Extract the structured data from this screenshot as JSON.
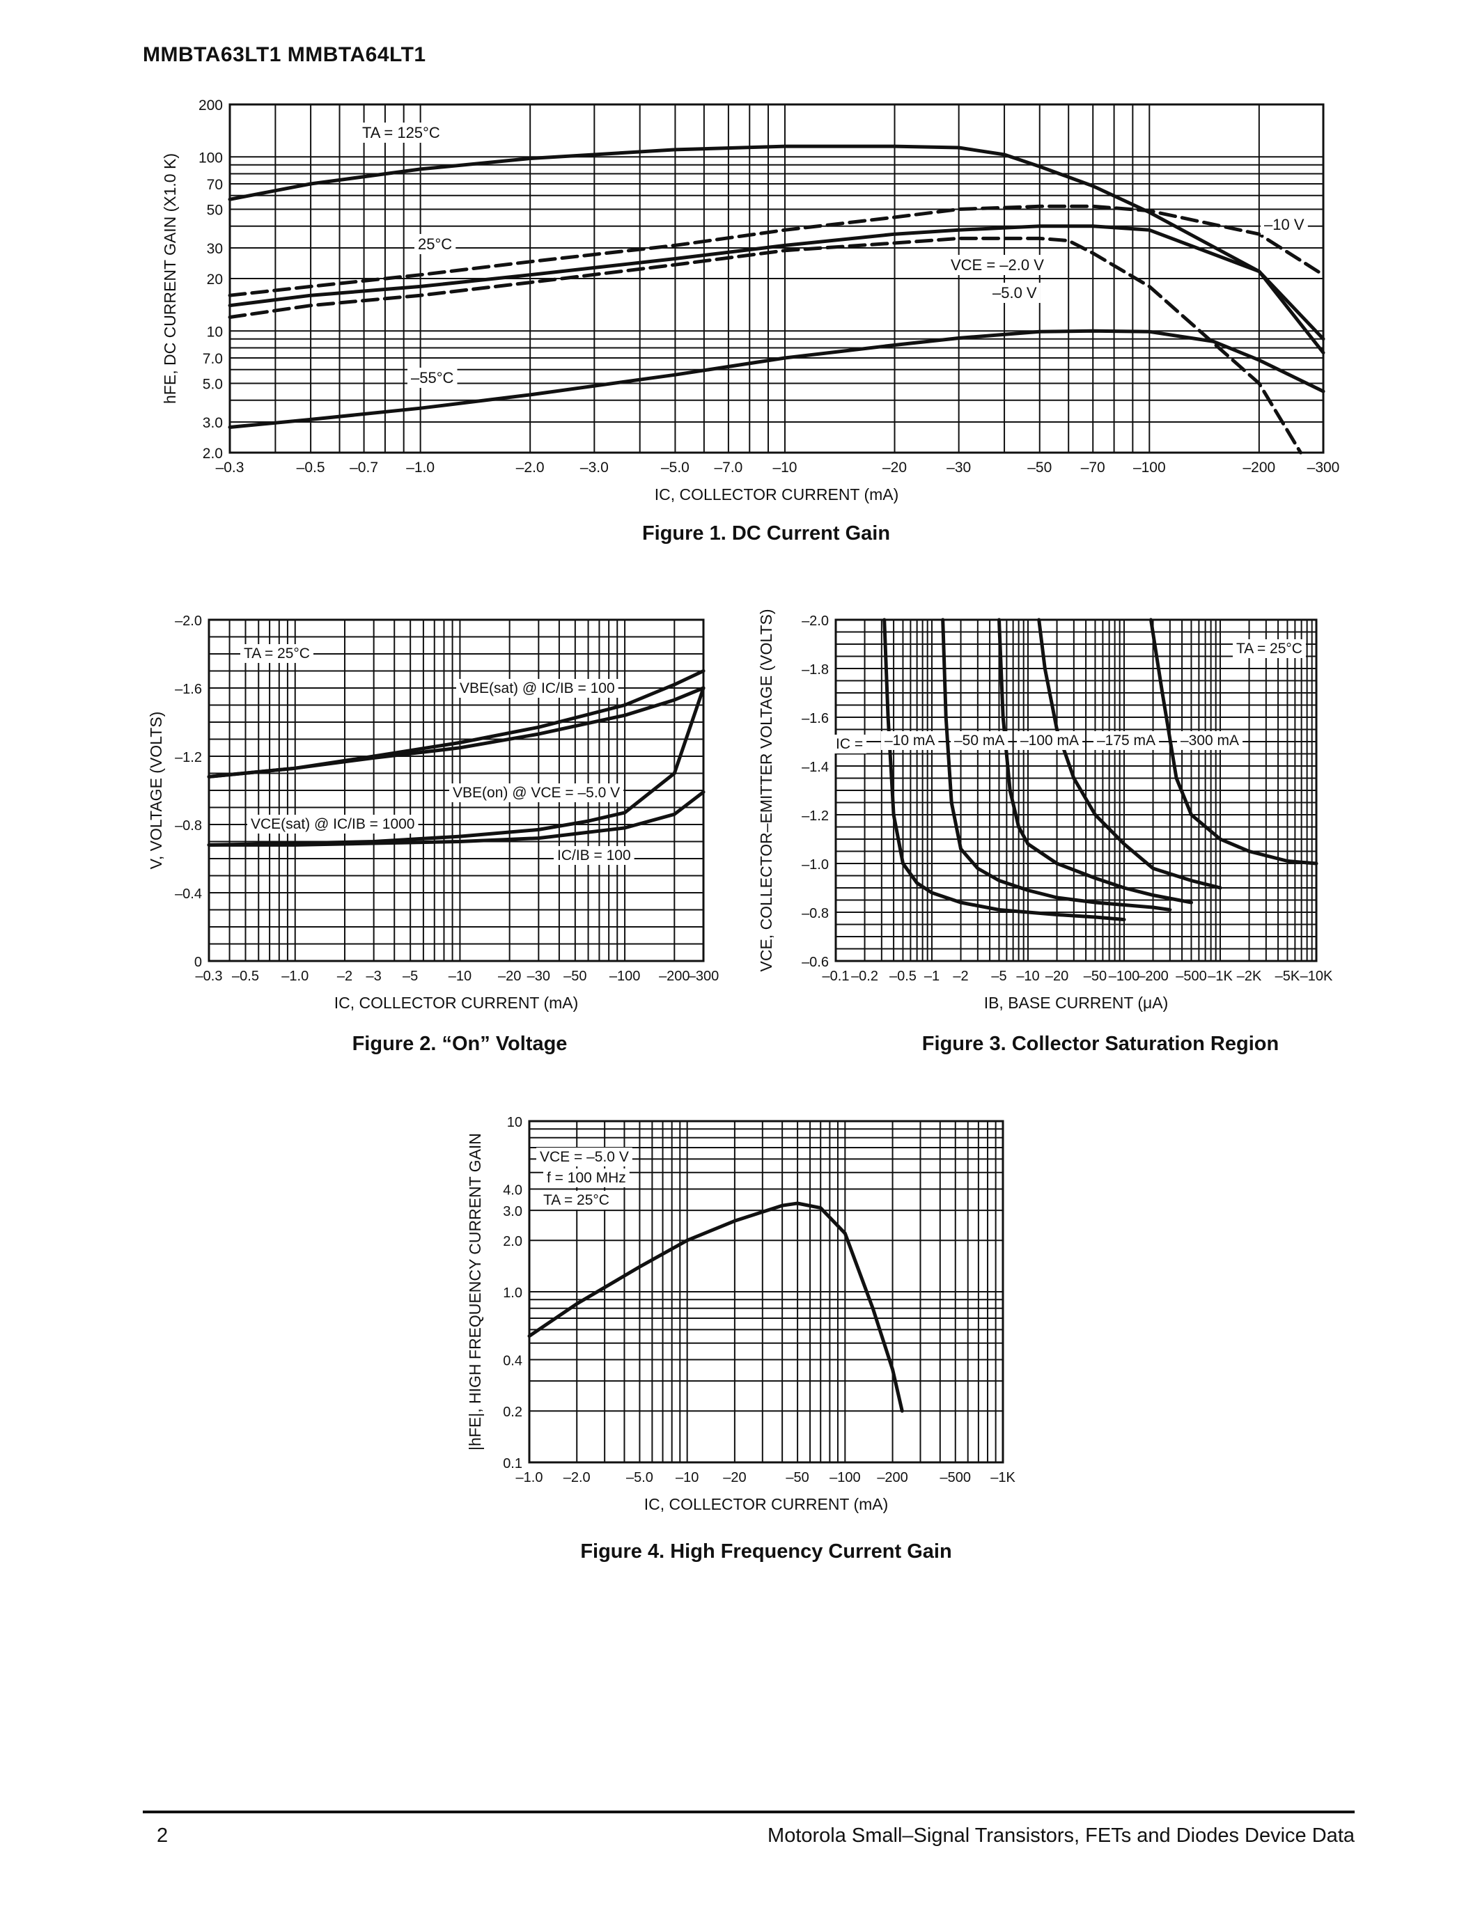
{
  "header": {
    "title": "MMBTA63LT1 MMBTA64LT1"
  },
  "footer": {
    "page_number": "2",
    "source": "Motorola Small–Signal Transistors, FETs and Diodes Device Data"
  },
  "figures": [
    {
      "caption": "Figure 1. DC Current Gain"
    },
    {
      "caption": "Figure 2. “On” Voltage"
    },
    {
      "caption": "Figure 3. Collector Saturation Region"
    },
    {
      "caption": "Figure 4. High Frequency Current Gain"
    }
  ],
  "chart_data": [
    {
      "type": "line",
      "x_scale": "log",
      "y_scale": "log",
      "xlabel": "IC, COLLECTOR CURRENT (mA)",
      "ylabel": "hFE, DC CURRENT GAIN (X1.0 K)",
      "xlim": [
        0.3,
        300
      ],
      "ylim": [
        2,
        200
      ],
      "x_ticks": [
        "–0.3",
        "–0.5",
        "–0.7",
        "–1.0",
        "–2.0",
        "–3.0",
        "–5.0",
        "–7.0",
        "–10",
        "–20",
        "–30",
        "–50",
        "–70",
        "–100",
        "–200",
        "–300"
      ],
      "y_ticks": [
        "200",
        "100",
        "70",
        "50",
        "30",
        "20",
        "10",
        "7.0",
        "5.0",
        "3.0",
        "2.0"
      ],
      "annotations": [
        "TA = 125°C",
        "25°C",
        "–55°C",
        "VCE = –2.0 V",
        "–5.0 V",
        "–10 V"
      ],
      "series": [
        {
          "style": "solid",
          "x": [
            0.3,
            0.5,
            1,
            2,
            5,
            10,
            20,
            30,
            40,
            50,
            70,
            100,
            200,
            300
          ],
          "y": [
            57,
            70,
            85,
            98,
            110,
            115,
            115,
            113,
            103,
            88,
            68,
            48,
            22,
            9
          ]
        },
        {
          "style": "dashed",
          "x": [
            0.3,
            0.5,
            1,
            2,
            5,
            10,
            20,
            30,
            50,
            70,
            100,
            200,
            300
          ],
          "y": [
            16,
            18,
            21,
            25,
            31,
            38,
            45,
            50,
            52,
            52,
            49,
            36,
            21
          ]
        },
        {
          "style": "solid",
          "x": [
            0.3,
            0.5,
            1,
            2,
            5,
            10,
            20,
            30,
            50,
            70,
            100,
            200,
            300
          ],
          "y": [
            14,
            16,
            18,
            21,
            26,
            31,
            36,
            38,
            40,
            40,
            38,
            22,
            7.5
          ]
        },
        {
          "style": "dashed",
          "x": [
            0.3,
            0.5,
            1,
            2,
            5,
            10,
            20,
            30,
            50,
            60,
            70,
            100,
            200,
            260
          ],
          "y": [
            12,
            14,
            16,
            19,
            24,
            29,
            32,
            34,
            34,
            33,
            28,
            18,
            5,
            2
          ]
        },
        {
          "style": "solid",
          "x": [
            0.3,
            0.5,
            1,
            2,
            5,
            10,
            20,
            30,
            50,
            70,
            100,
            150,
            200,
            300
          ],
          "y": [
            2.8,
            3.1,
            3.6,
            4.3,
            5.6,
            7,
            8.3,
            9.1,
            9.9,
            10,
            9.9,
            8.7,
            6.8,
            4.5
          ]
        }
      ]
    },
    {
      "type": "line",
      "x_scale": "log",
      "xlabel": "IC, COLLECTOR CURRENT (mA)",
      "ylabel": "V, VOLTAGE (VOLTS)",
      "xlim": [
        0.3,
        300
      ],
      "ylim": [
        0,
        -2.0
      ],
      "x_ticks": [
        "–0.3",
        "–0.5",
        "–1.0",
        "–2",
        "–3",
        "–5",
        "–10",
        "–20",
        "–30",
        "–50",
        "–100",
        "–200",
        "–300"
      ],
      "y_ticks": [
        "–2.0",
        "–1.6",
        "–1.2",
        "–0.8",
        "–0.4",
        "0"
      ],
      "annotations": [
        "TA = 25°C",
        "VBE(sat) @ IC/IB = 100",
        "VBE(on) @ VCE = –5.0 V",
        "VCE(sat) @ IC/IB = 1000",
        "IC/IB = 100"
      ],
      "series": [
        {
          "name": "VBE(sat) @ IC/IB = 100",
          "x": [
            0.3,
            1,
            3,
            10,
            30,
            100,
            200,
            300
          ],
          "y": [
            -1.08,
            -1.13,
            -1.2,
            -1.28,
            -1.37,
            -1.5,
            -1.62,
            -1.7
          ]
        },
        {
          "name": "VBE(on) @ VCE = –5.0 V",
          "x": [
            0.3,
            1,
            3,
            10,
            30,
            100,
            200,
            300
          ],
          "y": [
            -1.08,
            -1.13,
            -1.19,
            -1.25,
            -1.33,
            -1.44,
            -1.53,
            -1.6
          ]
        },
        {
          "name": "VCE(sat) @ IC/IB = 1000",
          "x": [
            0.3,
            1,
            3,
            10,
            30,
            60,
            100,
            200,
            300
          ],
          "y": [
            -0.68,
            -0.69,
            -0.7,
            -0.73,
            -0.77,
            -0.82,
            -0.87,
            -1.1,
            -1.6
          ]
        },
        {
          "name": "IC/IB = 100",
          "x": [
            0.3,
            1,
            3,
            10,
            30,
            100,
            200,
            300
          ],
          "y": [
            -0.68,
            -0.68,
            -0.69,
            -0.7,
            -0.72,
            -0.78,
            -0.86,
            -0.99
          ]
        }
      ]
    },
    {
      "type": "line",
      "x_scale": "log",
      "xlabel": "IB, BASE CURRENT (μA)",
      "ylabel": "VCE, COLLECTOR–EMITTER VOLTAGE (VOLTS)",
      "xlim": [
        0.1,
        10000
      ],
      "ylim": [
        -0.6,
        -2.0
      ],
      "x_ticks": [
        "–0.1",
        "–0.2",
        "–0.5",
        "–1",
        "–2",
        "–5",
        "–10",
        "–20",
        "–50",
        "–100",
        "–200",
        "–500",
        "–1K",
        "–2K",
        "–5K",
        "–10K"
      ],
      "y_ticks": [
        "–2.0",
        "–1.8",
        "–1.6",
        "–1.4",
        "–1.2",
        "–1.0",
        "–0.8",
        "–0.6"
      ],
      "annotations": [
        "TA = 25°C",
        "IC =",
        "–10 mA",
        "–50 mA",
        "–100 mA",
        "–175 mA",
        "–300 mA"
      ],
      "series": [
        {
          "name": "–10 mA",
          "x": [
            0.32,
            0.35,
            0.4,
            0.5,
            0.7,
            1,
            2,
            5,
            10,
            20,
            50,
            100
          ],
          "y": [
            -2,
            -1.6,
            -1.2,
            -1,
            -0.92,
            -0.88,
            -0.84,
            -0.81,
            -0.8,
            -0.79,
            -0.78,
            -0.77
          ]
        },
        {
          "name": "–50 mA",
          "x": [
            1.3,
            1.4,
            1.6,
            2,
            3,
            5,
            10,
            20,
            50,
            100,
            200,
            300
          ],
          "y": [
            -2,
            -1.6,
            -1.25,
            -1.06,
            -0.98,
            -0.93,
            -0.89,
            -0.86,
            -0.84,
            -0.83,
            -0.82,
            -0.81
          ]
        },
        {
          "name": "–100 mA",
          "x": [
            5,
            5.5,
            6.5,
            8,
            10,
            20,
            50,
            100,
            200,
            500
          ],
          "y": [
            -2,
            -1.6,
            -1.3,
            -1.15,
            -1.08,
            -1,
            -0.94,
            -0.9,
            -0.87,
            -0.84
          ]
        },
        {
          "name": "–175 mA",
          "x": [
            13,
            15,
            20,
            30,
            50,
            100,
            200,
            500,
            1000
          ],
          "y": [
            -2,
            -1.8,
            -1.55,
            -1.35,
            -1.2,
            -1.08,
            -0.98,
            -0.93,
            -0.9
          ]
        },
        {
          "name": "–300 mA",
          "x": [
            190,
            250,
            350,
            500,
            1000,
            2000,
            5000,
            10000
          ],
          "y": [
            -2,
            -1.7,
            -1.35,
            -1.2,
            -1.1,
            -1.05,
            -1.01,
            -1
          ]
        }
      ]
    },
    {
      "type": "line",
      "x_scale": "log",
      "y_scale": "log",
      "xlabel": "IC, COLLECTOR CURRENT (mA)",
      "ylabel": "|hFE|, HIGH FREQUENCY CURRENT GAIN",
      "xlim": [
        1.0,
        1000
      ],
      "ylim": [
        0.1,
        10
      ],
      "x_ticks": [
        "–1.0",
        "–2.0",
        "–5.0",
        "–10",
        "–20",
        "–50",
        "–100",
        "–200",
        "–500",
        "–1K"
      ],
      "y_ticks": [
        "10",
        "4.0",
        "3.0",
        "2.0",
        "1.0",
        "0.4",
        "0.2",
        "0.1"
      ],
      "annotations": [
        "VCE = –5.0 V",
        "f = 100 MHz",
        "TA = 25°C"
      ],
      "series": [
        {
          "name": "|hFE|",
          "x": [
            1,
            2,
            5,
            10,
            20,
            40,
            50,
            70,
            100,
            150,
            200,
            230
          ],
          "y": [
            0.55,
            0.85,
            1.4,
            2,
            2.6,
            3.2,
            3.3,
            3.1,
            2.2,
            0.8,
            0.35,
            0.2
          ]
        }
      ]
    }
  ]
}
